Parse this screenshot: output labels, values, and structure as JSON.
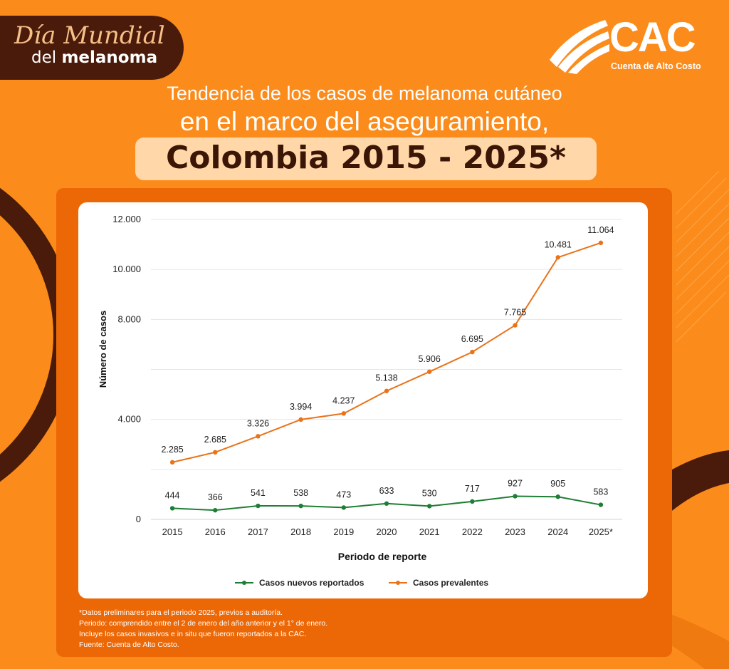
{
  "badge": {
    "line1": "Día Mundial",
    "line2a": "del",
    "line2b": "melanoma"
  },
  "logo": {
    "text": "CAC",
    "subtitle": "Cuenta de Alto Costo"
  },
  "title": {
    "line1": "Tendencia de los casos de melanoma cutáneo",
    "line2": "en el marco del aseguramiento,",
    "line3": "Colombia 2015 - 2025*"
  },
  "colors": {
    "background": "#FB8C1B",
    "frame": "#EC6806",
    "dark_brown": "#4A1B0A",
    "series_new": "#1E7E34",
    "series_prev": "#E8731A"
  },
  "chart_data": {
    "type": "line",
    "xlabel": "Periodo de reporte",
    "ylabel": "Número de casos",
    "y_ticks": [
      0,
      4000,
      8000,
      10000,
      12000
    ],
    "y_tick_labels": [
      "0",
      "4.000",
      "8.000",
      "10.000",
      "12.000"
    ],
    "ylim": [
      0,
      12000
    ],
    "grid": true,
    "legend_position": "bottom",
    "categories": [
      "2015",
      "2016",
      "2017",
      "2018",
      "2019",
      "2020",
      "2021",
      "2022",
      "2023",
      "2024",
      "2025*"
    ],
    "series": [
      {
        "name": "Casos nuevos reportados",
        "color": "#1E7E34",
        "values": [
          444,
          366,
          541,
          538,
          473,
          633,
          530,
          717,
          927,
          905,
          583
        ],
        "labels": [
          "444",
          "366",
          "541",
          "538",
          "473",
          "633",
          "530",
          "717",
          "927",
          "905",
          "583"
        ]
      },
      {
        "name": "Casos prevalentes",
        "color": "#E8731A",
        "values": [
          2285,
          2685,
          3326,
          3994,
          4237,
          5138,
          5906,
          6695,
          7765,
          10481,
          11064
        ],
        "labels": [
          "2.285",
          "2.685",
          "3.326",
          "3.994",
          "4.237",
          "5.138",
          "5.906",
          "6.695",
          "7.765",
          "10.481",
          "11.064"
        ]
      }
    ]
  },
  "notes": [
    "*Datos preliminares para el periodo 2025, previos a auditoría.",
    "Periodo: comprendido entre el 2 de enero del año anterior y el 1° de enero.",
    "Incluye los casos invasivos e in situ que fueron reportados a la CAC.",
    "Fuente: Cuenta de Alto Costo."
  ]
}
